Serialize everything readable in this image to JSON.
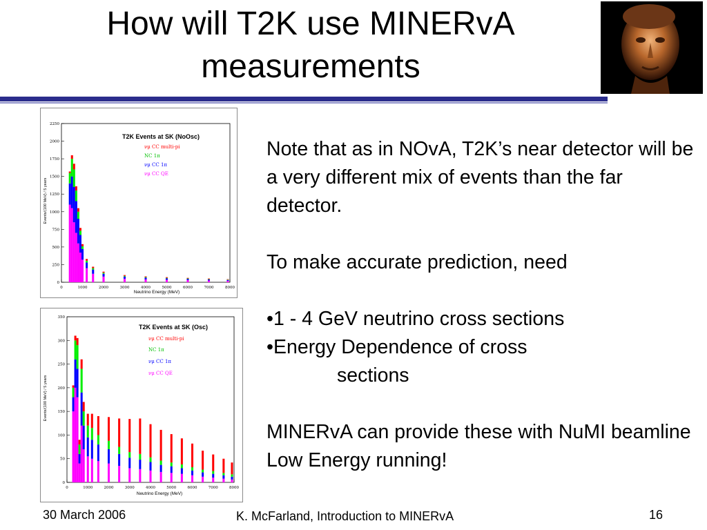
{
  "slide": {
    "title_line1": "How will T2K use MINERvA",
    "title_line2": "measurements",
    "body": {
      "p1": "Note that as in NOvA, T2K’s near detector will be a very different mix of events than the far detector.",
      "p2": "To make accurate prediction, need",
      "b1": "•1 - 4 GeV neutrino cross sections",
      "b2a": "•Energy Dependence of cross",
      "b2b": "sections",
      "p3": "MINERvA can provide these with NuMI beamline Low Energy running!"
    },
    "footer": {
      "date": "30 March 2006",
      "author": "K. McFarland, Introduction to MINERvA",
      "page": "16"
    }
  },
  "colors": {
    "rule": "#2b2d8c",
    "cc_multi_pi": "#ff0000",
    "nc_1pi": "#00ee00",
    "cc_1pi": "#0000ff",
    "cc_qe": "#ff00ff"
  },
  "chart_data": [
    {
      "type": "bar",
      "title": "T2K Events at SK (NoOsc)",
      "xlabel": "Neutrino Energy (MeV)",
      "ylabel": "Events/(100 MeV) / 5 years",
      "xlim": [
        0,
        8000
      ],
      "ylim": [
        0,
        2250
      ],
      "x_ticks": [
        "0",
        "1000",
        "2000",
        "3000",
        "4000",
        "5000",
        "6000",
        "7000",
        "8000"
      ],
      "y_ticks": [
        "0",
        "250",
        "500",
        "750",
        "1000",
        "1250",
        "1500",
        "1750",
        "2000",
        "2250"
      ],
      "legend": [
        "νμ CC multi-pi",
        "NC 1π",
        "νμ CC 1π",
        "νμ CC QE"
      ],
      "bin_width": 100,
      "x": [
        400,
        500,
        600,
        700,
        800,
        900,
        1000,
        1200,
        1500,
        2000,
        3000,
        4000,
        5000,
        6000,
        7000,
        7900
      ],
      "series": [
        {
          "name": "νμ CC QE",
          "values": [
            1100,
            1050,
            850,
            700,
            550,
            420,
            320,
            200,
            120,
            80,
            50,
            40,
            35,
            30,
            25,
            20
          ]
        },
        {
          "name": "νμ CC 1π",
          "values": [
            300,
            450,
            500,
            450,
            350,
            250,
            150,
            80,
            60,
            40,
            30,
            25,
            20,
            18,
            15,
            12
          ]
        },
        {
          "name": "NC 1π",
          "values": [
            150,
            250,
            250,
            150,
            100,
            60,
            40,
            25,
            20,
            15,
            10,
            8,
            7,
            6,
            5,
            5
          ]
        },
        {
          "name": "νμ CC multi-pi",
          "values": [
            20,
            50,
            80,
            60,
            50,
            40,
            30,
            25,
            20,
            15,
            12,
            10,
            10,
            8,
            8,
            6
          ]
        }
      ]
    },
    {
      "type": "bar",
      "title": "T2K Events at SK (Osc)",
      "xlabel": "Neutrino Energy (MeV)",
      "ylabel": "Events/(100 MeV) / 5 years",
      "xlim": [
        0,
        8000
      ],
      "ylim": [
        0,
        350
      ],
      "x_ticks": [
        "0",
        "1000",
        "2000",
        "3000",
        "4000",
        "5000",
        "6000",
        "7000",
        "8000"
      ],
      "y_ticks": [
        "0",
        "50",
        "100",
        "150",
        "200",
        "250",
        "300",
        "350"
      ],
      "legend": [
        "νμ CC multi-pi",
        "NC 1π",
        "νμ CC 1π",
        "νμ CC QE"
      ],
      "bin_width": 100,
      "x": [
        300,
        400,
        500,
        600,
        700,
        800,
        1000,
        1200,
        1500,
        2000,
        2500,
        3000,
        3500,
        4000,
        4500,
        5000,
        5500,
        6000,
        6500,
        7000,
        7500,
        7900
      ],
      "series": [
        {
          "name": "νμ CC QE",
          "values": [
            150,
            200,
            180,
            40,
            120,
            70,
            55,
            50,
            45,
            40,
            35,
            30,
            28,
            25,
            22,
            20,
            18,
            15,
            12,
            10,
            8,
            6
          ]
        },
        {
          "name": "νμ CC 1π",
          "values": [
            30,
            60,
            60,
            20,
            70,
            50,
            40,
            40,
            35,
            30,
            25,
            22,
            20,
            18,
            15,
            14,
            12,
            10,
            9,
            8,
            7,
            6
          ]
        },
        {
          "name": "NC 1π",
          "values": [
            20,
            40,
            50,
            20,
            50,
            30,
            25,
            25,
            20,
            18,
            15,
            12,
            12,
            10,
            9,
            8,
            8,
            7,
            6,
            6,
            5,
            5
          ]
        },
        {
          "name": "νμ CC multi-pi",
          "values": [
            5,
            10,
            15,
            10,
            20,
            20,
            25,
            30,
            40,
            50,
            60,
            70,
            75,
            70,
            65,
            60,
            55,
            50,
            40,
            35,
            30,
            25
          ]
        }
      ]
    }
  ]
}
